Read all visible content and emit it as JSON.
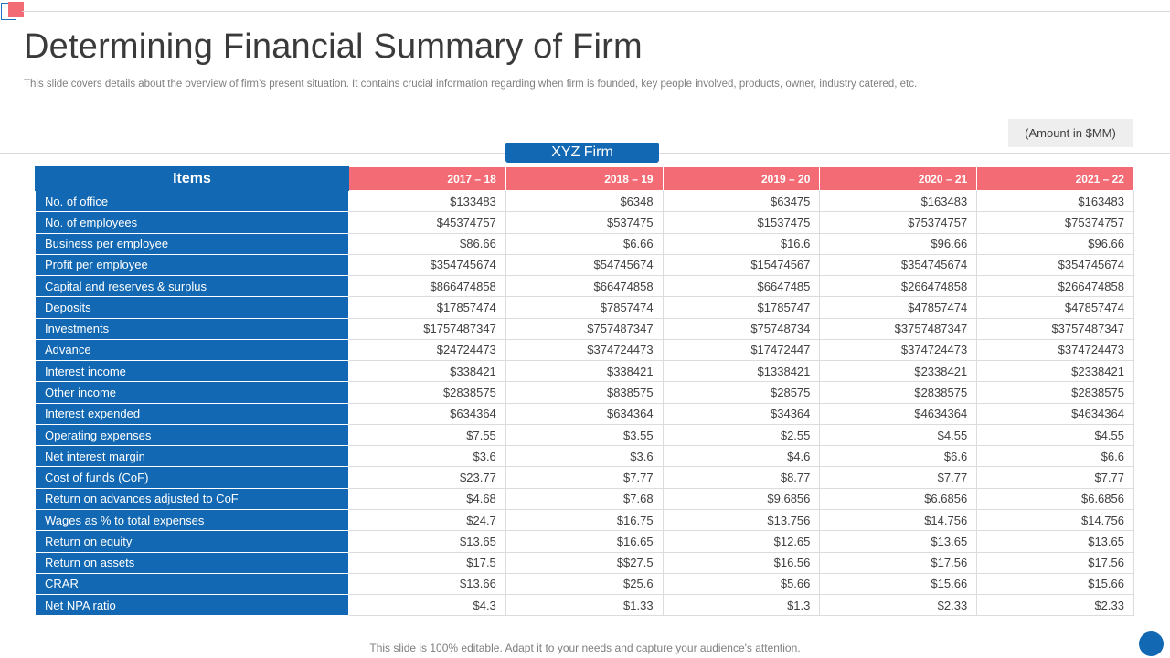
{
  "slide": {
    "title": "Determining Financial Summary of Firm",
    "subtitle": "This slide covers details about the overview of firm’s present situation. It contains crucial information regarding when firm is founded, key people involved, products, owner, industry catered, etc.",
    "amount_note": "(Amount in $MM)",
    "firm_name": "XYZ Firm",
    "footer": "This slide is 100% editable. Adapt it to your needs and capture your audience's attention."
  },
  "colors": {
    "accent_blue": "#1268b3",
    "accent_red": "#f36b74"
  },
  "table": {
    "items_header": "Items",
    "years": [
      "2017 – 18",
      "2018 – 19",
      "2019 – 20",
      "2020 – 21",
      "2021 – 22"
    ],
    "rows": [
      {
        "item": "No. of office",
        "values": [
          "$133483",
          "$6348",
          "$63475",
          "$163483",
          "$163483"
        ]
      },
      {
        "item": "No. of employees",
        "values": [
          "$45374757",
          "$537475",
          "$1537475",
          "$75374757",
          "$75374757"
        ]
      },
      {
        "item": "Business per employee",
        "values": [
          "$86.66",
          "$6.66",
          "$16.6",
          "$96.66",
          "$96.66"
        ]
      },
      {
        "item": "Profit per employee",
        "values": [
          "$354745674",
          "$54745674",
          "$15474567",
          "$354745674",
          "$354745674"
        ]
      },
      {
        "item": "Capital and reserves & surplus",
        "values": [
          "$866474858",
          "$66474858",
          "$6647485",
          "$266474858",
          "$266474858"
        ]
      },
      {
        "item": "Deposits",
        "values": [
          "$17857474",
          "$7857474",
          "$1785747",
          "$47857474",
          "$47857474"
        ]
      },
      {
        "item": "Investments",
        "values": [
          "$1757487347",
          "$757487347",
          "$75748734",
          "$3757487347",
          "$3757487347"
        ]
      },
      {
        "item": "Advance",
        "values": [
          "$24724473",
          "$374724473",
          "$17472447",
          "$374724473",
          "$374724473"
        ]
      },
      {
        "item": "Interest income",
        "values": [
          "$338421",
          "$338421",
          "$1338421",
          "$2338421",
          "$2338421"
        ]
      },
      {
        "item": "Other income",
        "values": [
          "$2838575",
          "$838575",
          "$28575",
          "$2838575",
          "$2838575"
        ]
      },
      {
        "item": "Interest expended",
        "values": [
          "$634364",
          "$634364",
          "$34364",
          "$4634364",
          "$4634364"
        ]
      },
      {
        "item": "Operating expenses",
        "values": [
          "$7.55",
          "$3.55",
          "$2.55",
          "$4.55",
          "$4.55"
        ]
      },
      {
        "item": "Net interest margin",
        "values": [
          "$3.6",
          "$3.6",
          "$4.6",
          "$6.6",
          "$6.6"
        ]
      },
      {
        "item": "Cost of funds (CoF)",
        "values": [
          "$23.77",
          "$7.77",
          "$8.77",
          "$7.77",
          "$7.77"
        ]
      },
      {
        "item": "Return on advances adjusted to CoF",
        "values": [
          "$4.68",
          "$7.68",
          "$9.6856",
          "$6.6856",
          "$6.6856"
        ]
      },
      {
        "item": "Wages as % to total expenses",
        "values": [
          "$24.7",
          "$16.75",
          "$13.756",
          "$14.756",
          "$14.756"
        ]
      },
      {
        "item": "Return on equity",
        "values": [
          "$13.65",
          "$16.65",
          "$12.65",
          "$13.65",
          "$13.65"
        ]
      },
      {
        "item": "Return on assets",
        "values": [
          "$17.5",
          "$$27.5",
          "$16.56",
          "$17.56",
          "$17.56"
        ]
      },
      {
        "item": "CRAR",
        "values": [
          "$13.66",
          "$25.6",
          "$5.66",
          "$15.66",
          "$15.66"
        ]
      },
      {
        "item": "Net NPA ratio",
        "values": [
          "$4.3",
          "$1.33",
          "$1.3",
          "$2.33",
          "$2.33"
        ]
      }
    ]
  }
}
